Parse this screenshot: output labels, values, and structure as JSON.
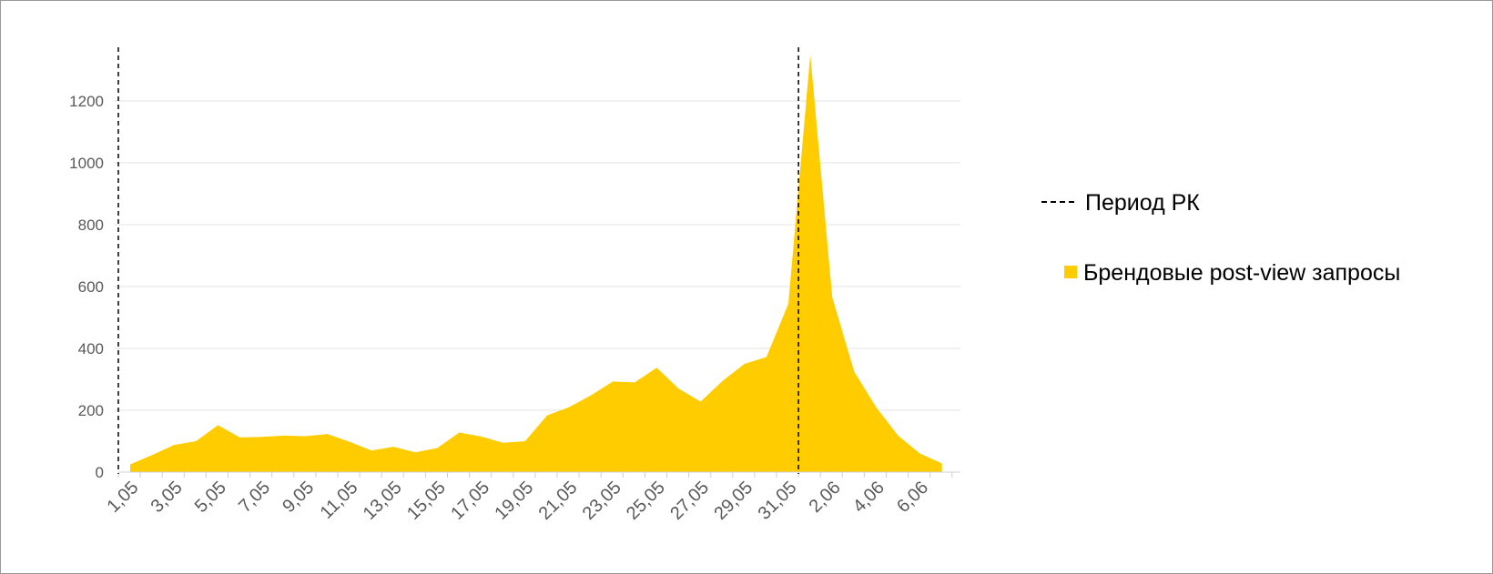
{
  "chart_data": {
    "type": "area",
    "title": "",
    "xlabel": "",
    "ylabel": "",
    "ylim": [
      0,
      1380
    ],
    "yticks": [
      0,
      200,
      400,
      600,
      800,
      1000,
      1200
    ],
    "grid": true,
    "legend_position": "right",
    "categories": [
      "1,05",
      "2,05",
      "3,05",
      "4,05",
      "5,05",
      "6,05",
      "7,05",
      "8,05",
      "9,05",
      "10,05",
      "11,05",
      "12,05",
      "13,05",
      "14,05",
      "15,05",
      "16,05",
      "17,05",
      "18,05",
      "19,05",
      "20,05",
      "21,05",
      "22,05",
      "23,05",
      "24,05",
      "25,05",
      "26,05",
      "27,05",
      "28,05",
      "29,05",
      "30,05",
      "31,05",
      "1,06",
      "2,06",
      "3,06",
      "4,06",
      "5,06",
      "6,06",
      "7,06"
    ],
    "tick_labels": [
      "1,05",
      "3,05",
      "5,05",
      "7,05",
      "9,05",
      "11,05",
      "13,05",
      "15,05",
      "17,05",
      "19,05",
      "21,05",
      "23,05",
      "25,05",
      "27,05",
      "29,05",
      "31,05",
      "2,06",
      "4,06",
      "6,06"
    ],
    "series": [
      {
        "name": "Брендовые post-view запросы",
        "color": "#ffcc00",
        "values": [
          25,
          55,
          88,
          100,
          152,
          112,
          114,
          118,
          116,
          123,
          98,
          70,
          82,
          64,
          78,
          128,
          115,
          95,
          100,
          183,
          210,
          248,
          293,
          290,
          338,
          270,
          228,
          295,
          350,
          372,
          545,
          1350,
          565,
          325,
          210,
          118,
          60,
          28
        ]
      }
    ],
    "markers": [
      {
        "name": "Период РК",
        "position": "1,05",
        "style": "dashed",
        "color": "#000000"
      },
      {
        "name": "Период РК",
        "position": "1,06",
        "style": "dashed",
        "color": "#000000"
      }
    ],
    "legend": [
      {
        "label": "Период РК",
        "symbol": "dashed-line"
      },
      {
        "label": "Брендовые post-view запросы",
        "symbol": "square"
      }
    ]
  }
}
